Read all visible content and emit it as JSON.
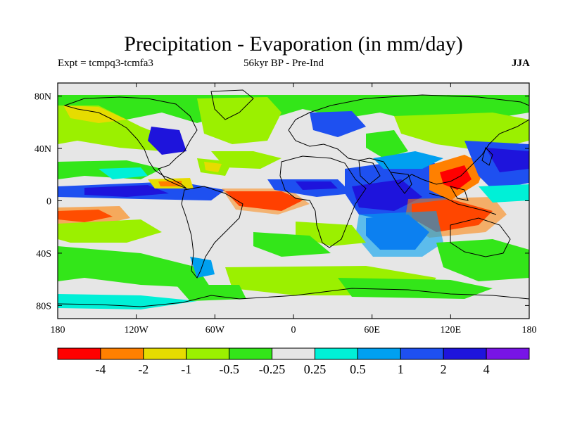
{
  "title": "Precipitation - Evaporation (in mm/day)",
  "subtitle_left": "Expt = tcmpq3-tcmfa3",
  "subtitle_center": "56kyr BP - Pre-Ind",
  "subtitle_right": "JJA",
  "map": {
    "projection": "cylindrical-equidistant",
    "lon_range": [
      -180,
      180
    ],
    "lat_range": [
      -90,
      90
    ],
    "background_color": "#e6e6e6",
    "x_ticks": [
      {
        "value": -180,
        "label": "180"
      },
      {
        "value": -120,
        "label": "120W"
      },
      {
        "value": -60,
        "label": "60W"
      },
      {
        "value": 0,
        "label": "0"
      },
      {
        "value": 60,
        "label": "60E"
      },
      {
        "value": 120,
        "label": "120E"
      },
      {
        "value": 180,
        "label": "180"
      }
    ],
    "y_ticks": [
      {
        "value": 80,
        "label": "80N"
      },
      {
        "value": 40,
        "label": "40N"
      },
      {
        "value": 0,
        "label": "0"
      },
      {
        "value": -40,
        "label": "40S"
      },
      {
        "value": -80,
        "label": "80S"
      }
    ]
  },
  "colorbar": {
    "colors": [
      "#ff0000",
      "#ff8000",
      "#e6dc00",
      "#9bf000",
      "#33e619",
      "#e6e6e6",
      "#00f0d7",
      "#00a0f0",
      "#1e50f0",
      "#1e14dc",
      "#7814e6"
    ],
    "labels": [
      "-4",
      "-2",
      "-1",
      "-0.5",
      "-0.25",
      "0.25",
      "0.5",
      "1",
      "2",
      "4"
    ]
  }
}
